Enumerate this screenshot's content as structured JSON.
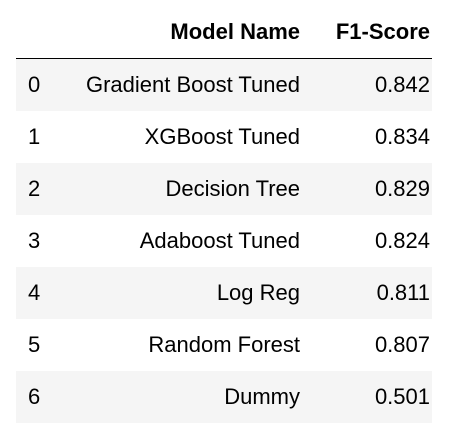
{
  "table": {
    "headers": {
      "index": "",
      "model_name": "Model Name",
      "f1_score": "F1-Score"
    },
    "rows": [
      {
        "index": "0",
        "model_name": "Gradient Boost Tuned",
        "f1_score": "0.842"
      },
      {
        "index": "1",
        "model_name": "XGBoost Tuned",
        "f1_score": "0.834"
      },
      {
        "index": "2",
        "model_name": "Decision Tree",
        "f1_score": "0.829"
      },
      {
        "index": "3",
        "model_name": "Adaboost Tuned",
        "f1_score": "0.824"
      },
      {
        "index": "4",
        "model_name": "Log Reg",
        "f1_score": "0.811"
      },
      {
        "index": "5",
        "model_name": "Random Forest",
        "f1_score": "0.807"
      },
      {
        "index": "6",
        "model_name": "Dummy",
        "f1_score": "0.501"
      }
    ]
  },
  "colors": {
    "stripe": "#f5f5f5",
    "background": "#ffffff",
    "text": "#000000"
  }
}
